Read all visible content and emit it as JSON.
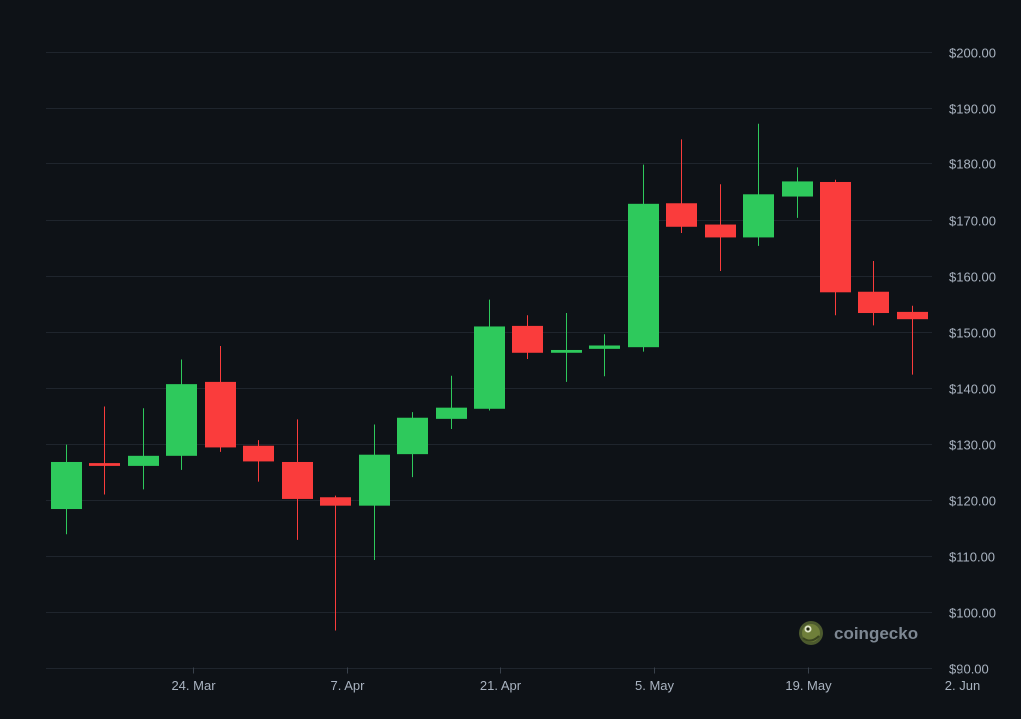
{
  "chart_data": {
    "type": "candlestick",
    "up_color": "#2ec95c",
    "down_color": "#fa3c3c",
    "ylim": [
      90,
      200
    ],
    "y_ticks": [
      90,
      100,
      110,
      120,
      130,
      140,
      150,
      160,
      170,
      180,
      190,
      200
    ],
    "y_tick_labels": [
      "$90.00",
      "$100.00",
      "$110.00",
      "$120.00",
      "$130.00",
      "$140.00",
      "$150.00",
      "$160.00",
      "$170.00",
      "$180.00",
      "$190.00",
      "$200.00"
    ],
    "x_tick_labels": [
      "24. Mar",
      "7. Apr",
      "21. Apr",
      "5. May",
      "19. May",
      "2. Jun"
    ],
    "x_tick_candle_index": [
      3,
      7,
      11,
      15,
      19,
      23
    ],
    "grid": true,
    "candles": [
      {
        "open": 118.3,
        "high": 129.8,
        "low": 113.8,
        "close": 126.7
      },
      {
        "open": 126.5,
        "high": 136.6,
        "low": 120.9,
        "close": 126.0
      },
      {
        "open": 126.0,
        "high": 136.3,
        "low": 121.8,
        "close": 127.8
      },
      {
        "open": 127.8,
        "high": 145.0,
        "low": 125.3,
        "close": 140.6
      },
      {
        "open": 141.0,
        "high": 147.4,
        "low": 128.5,
        "close": 129.3
      },
      {
        "open": 129.6,
        "high": 130.6,
        "low": 123.2,
        "close": 126.8
      },
      {
        "open": 126.7,
        "high": 134.3,
        "low": 112.8,
        "close": 120.1
      },
      {
        "open": 120.4,
        "high": 120.7,
        "low": 96.6,
        "close": 118.9
      },
      {
        "open": 118.9,
        "high": 133.4,
        "low": 109.2,
        "close": 128.0
      },
      {
        "open": 128.1,
        "high": 135.6,
        "low": 124.0,
        "close": 134.6
      },
      {
        "open": 134.4,
        "high": 142.1,
        "low": 132.6,
        "close": 136.4
      },
      {
        "open": 136.2,
        "high": 155.7,
        "low": 135.9,
        "close": 150.9
      },
      {
        "open": 151.0,
        "high": 152.9,
        "low": 145.1,
        "close": 146.2
      },
      {
        "open": 146.2,
        "high": 153.3,
        "low": 141.0,
        "close": 146.7
      },
      {
        "open": 146.9,
        "high": 149.5,
        "low": 142.0,
        "close": 147.5
      },
      {
        "open": 147.2,
        "high": 179.8,
        "low": 146.4,
        "close": 172.8
      },
      {
        "open": 172.9,
        "high": 184.3,
        "low": 167.6,
        "close": 168.7
      },
      {
        "open": 169.1,
        "high": 176.3,
        "low": 160.8,
        "close": 166.8
      },
      {
        "open": 166.8,
        "high": 187.1,
        "low": 165.3,
        "close": 174.5
      },
      {
        "open": 174.1,
        "high": 179.3,
        "low": 170.3,
        "close": 176.8
      },
      {
        "open": 176.7,
        "high": 177.1,
        "low": 152.9,
        "close": 157.0
      },
      {
        "open": 157.1,
        "high": 162.6,
        "low": 151.1,
        "close": 153.3
      },
      {
        "open": 153.5,
        "high": 154.6,
        "low": 142.3,
        "close": 152.2
      }
    ]
  },
  "watermark": {
    "text": "coingecko",
    "icon": "coingecko-logo-icon"
  }
}
